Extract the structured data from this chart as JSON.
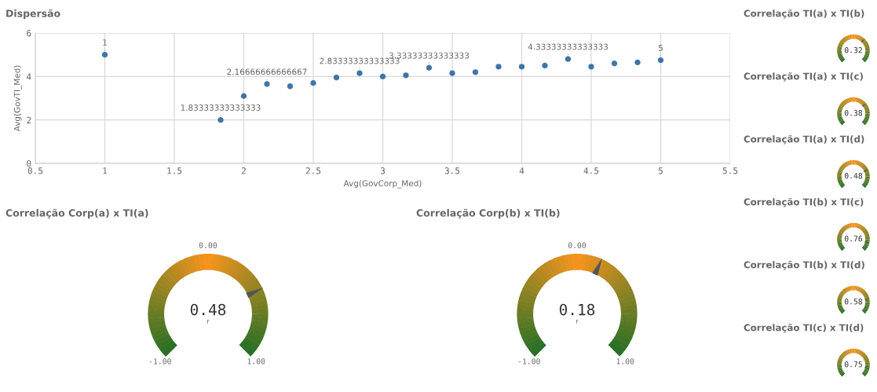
{
  "chart_data": [
    {
      "type": "scatter",
      "title": "Dispersão",
      "xlabel": "Avg(GovCorp_Med)",
      "ylabel": "Avg(GovTI_Med)",
      "x": [
        1,
        1.83333333333333,
        2,
        2.16666666666667,
        2.33333333333333,
        2.5,
        2.66666666666667,
        2.83333333333333,
        3,
        3.16666666666667,
        3.33333333333333,
        3.5,
        3.66666666666667,
        3.83333333333333,
        4,
        4.16666666666667,
        4.33333333333333,
        4.5,
        4.66666666666667,
        4.83333333333333,
        5
      ],
      "values": [
        5.0,
        2.0,
        3.1,
        3.65,
        3.55,
        3.7,
        3.95,
        4.15,
        4.0,
        4.05,
        4.4,
        4.15,
        4.2,
        4.45,
        4.45,
        4.5,
        4.8,
        4.45,
        4.6,
        4.65,
        4.75
      ],
      "annotations": [
        {
          "text": "1",
          "x": 1,
          "y": 5.0
        },
        {
          "text": "1.83333333333333",
          "x": 1.83333333333333,
          "y": 2.0
        },
        {
          "text": "2.16666666666667",
          "x": 2.16666666666667,
          "y": 3.65
        },
        {
          "text": "2.83333333333333",
          "x": 2.83333333333333,
          "y": 4.15
        },
        {
          "text": "3.33333333333333",
          "x": 3.33333333333333,
          "y": 4.4
        },
        {
          "text": "4.33333333333333",
          "x": 4.33333333333333,
          "y": 4.8
        },
        {
          "text": "5",
          "x": 5,
          "y": 4.75
        }
      ],
      "color": "#3f74a8",
      "marker": "circle",
      "xlim": [
        0.5,
        5.5
      ],
      "xticks": [
        0.5,
        1,
        1.5,
        2,
        2.5,
        3,
        3.5,
        4,
        4.5,
        5,
        5.5
      ],
      "ylim": [
        0,
        6
      ],
      "yticks": [
        0,
        2,
        4,
        6
      ],
      "grid": true
    },
    {
      "type": "other",
      "title": "Correlação Corp(a) x TI(a)",
      "values": [
        0.48
      ],
      "data_labels": true,
      "annotations": [
        "r",
        "0.00",
        "-1.00",
        "1.00"
      ]
    },
    {
      "type": "other",
      "title": "Correlação Corp(b) x TI(b)",
      "values": [
        0.18
      ],
      "data_labels": true,
      "annotations": [
        "r",
        "0.00",
        "-1.00",
        "1.00"
      ]
    },
    {
      "type": "other",
      "title": "Correlação TI(a) x TI(b)",
      "values": [
        0.32
      ],
      "data_labels": true
    },
    {
      "type": "other",
      "title": "Correlação TI(a) x TI(c)",
      "values": [
        0.38
      ],
      "data_labels": true
    },
    {
      "type": "other",
      "title": "Correlação TI(a) x TI(d)",
      "values": [
        0.48
      ],
      "data_labels": true
    },
    {
      "type": "other",
      "title": "Correlação TI(b) x TI(c)",
      "values": [
        0.76
      ],
      "data_labels": true
    },
    {
      "type": "other",
      "title": "Correlação TI(b) x TI(d)",
      "values": [
        0.58
      ],
      "data_labels": true
    },
    {
      "type": "other",
      "title": "Correlação TI(c) x TI(d)",
      "values": [
        0.75
      ],
      "data_labels": true
    }
  ]
}
